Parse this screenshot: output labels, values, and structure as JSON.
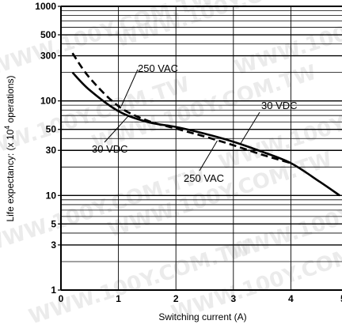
{
  "chart_data": {
    "type": "line",
    "title": "",
    "xlabel": "Switching current (A)",
    "ylabel_prefix": "Life expectancy: (x 10",
    "ylabel_exp": "4",
    "ylabel_suffix": " operations)",
    "xlim": [
      0,
      5
    ],
    "ylim": [
      1,
      1000
    ],
    "y_scale": "log",
    "grid": true,
    "x_ticks": [
      "0",
      "1",
      "2",
      "3",
      "4",
      "5"
    ],
    "y_ticks": [
      {
        "value": 1,
        "label": "1"
      },
      {
        "value": 3,
        "label": "3"
      },
      {
        "value": 5,
        "label": "5"
      },
      {
        "value": 10,
        "label": "10"
      },
      {
        "value": 30,
        "label": "30"
      },
      {
        "value": 50,
        "label": "50"
      },
      {
        "value": 100,
        "label": "100"
      },
      {
        "value": 300,
        "label": "300"
      },
      {
        "value": 500,
        "label": "500"
      },
      {
        "value": 1000,
        "label": "1000"
      }
    ],
    "series": [
      {
        "name": "30 VDC",
        "style": "solid",
        "x": [
          0.2,
          0.5,
          1.0,
          1.5,
          2.0,
          2.5,
          3.0,
          3.5,
          4.0,
          4.5,
          4.85
        ],
        "y": [
          200,
          130,
          78,
          60,
          53,
          45,
          37,
          29,
          22,
          14,
          10
        ]
      },
      {
        "name": "250 VAC",
        "style": "dashed",
        "x": [
          0.2,
          0.5,
          1.0,
          1.5,
          2.0,
          2.5,
          3.0,
          3.5,
          4.0
        ],
        "y": [
          320,
          175,
          88,
          62,
          51,
          42,
          34,
          27,
          22
        ]
      }
    ],
    "annotations": [
      {
        "text": "250 VAC",
        "series": "250 VAC"
      },
      {
        "text": "30 VDC",
        "series": "30 VDC"
      },
      {
        "text": "30 VDC",
        "series": "30 VDC"
      },
      {
        "text": "250 VAC",
        "series": "250 VAC"
      }
    ],
    "colors": {
      "line": "#000000",
      "grid": "#000000"
    }
  },
  "watermark": "WWW.100Y.COM.TW"
}
